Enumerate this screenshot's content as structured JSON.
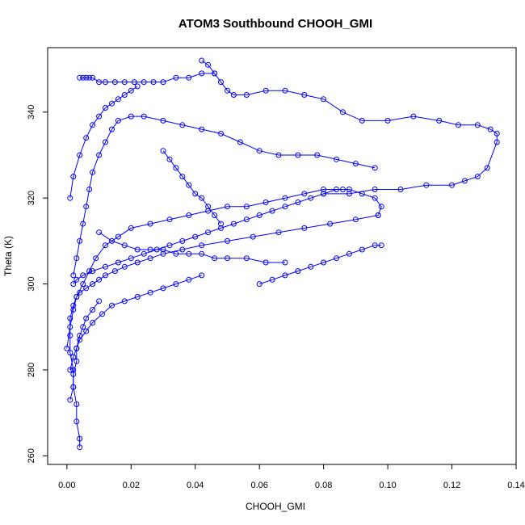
{
  "chart_data": {
    "type": "line",
    "title": "ATOM3 Southbound CHOOH_GMI",
    "xlabel": "CHOOH_GMI",
    "ylabel": "Theta (K)",
    "xlim": [
      -0.006,
      0.14
    ],
    "ylim": [
      258,
      355
    ],
    "x_ticks": [
      0.0,
      0.02,
      0.04,
      0.06,
      0.08,
      0.1,
      0.12,
      0.14
    ],
    "x_tick_labels": [
      "0.00",
      "0.02",
      "0.04",
      "0.06",
      "0.08",
      "0.10",
      "0.12",
      "0.14"
    ],
    "y_ticks": [
      260,
      280,
      300,
      320,
      340
    ],
    "y_tick_labels": [
      "260",
      "280",
      "300",
      "320",
      "340"
    ],
    "grid": false,
    "legend": "none",
    "series_color": "#0000ff",
    "marker": "open-circle",
    "series": [
      {
        "segments": [
          {
            "x": [
              0.004,
              0.004,
              0.003,
              0.003,
              0.002,
              0.002,
              0.001,
              0.001,
              0.001,
              0.002,
              0.003,
              0.004,
              0.006,
              0.008,
              0.01,
              0.012,
              0.015,
              0.018,
              0.022,
              0.026,
              0.03,
              0.036,
              0.042,
              0.05,
              0.058,
              0.066,
              0.074,
              0.082,
              0.09,
              0.097
            ],
            "y": [
              262,
              264,
              268,
              272,
              276,
              280,
              284,
              288,
              292,
              295,
              297,
              298,
              299,
              300,
              301,
              302,
              303,
              304,
              305,
              306,
              307,
              308,
              309,
              310,
              311,
              312,
              313,
              314,
              315,
              316
            ]
          },
          {
            "x": [
              0.097,
              0.098,
              0.096,
              0.092,
              0.088,
              0.084,
              0.08,
              0.076,
              0.072,
              0.068,
              0.064,
              0.06,
              0.056,
              0.052,
              0.048,
              0.044,
              0.04,
              0.036,
              0.032,
              0.028,
              0.024,
              0.02,
              0.016,
              0.012,
              0.008,
              0.005,
              0.003,
              0.002
            ],
            "y": [
              316,
              318,
              320,
              321,
              322,
              322,
              321,
              320,
              319,
              318,
              317,
              316,
              315,
              314,
              313,
              312,
              311,
              310,
              309,
              308,
              307,
              306,
              305,
              304,
              303,
              302,
              301,
              300
            ]
          },
          {
            "x": [
              0.002,
              0.003,
              0.004,
              0.005,
              0.006,
              0.007,
              0.008,
              0.01,
              0.012,
              0.014,
              0.016,
              0.02,
              0.024,
              0.03,
              0.036,
              0.042,
              0.048,
              0.054,
              0.06,
              0.066,
              0.072,
              0.078,
              0.084,
              0.09,
              0.096
            ],
            "y": [
              302,
              306,
              310,
              314,
              318,
              322,
              326,
              330,
              333,
              336,
              338,
              339,
              339,
              338,
              337,
              336,
              335,
              333,
              331,
              330,
              330,
              330,
              329,
              328,
              327
            ]
          },
          {
            "x": [
              0.042,
              0.044,
              0.046,
              0.048,
              0.05,
              0.052,
              0.056,
              0.062,
              0.068,
              0.074,
              0.08,
              0.086,
              0.092,
              0.1,
              0.108,
              0.116,
              0.122,
              0.128,
              0.132,
              0.134,
              0.134,
              0.131,
              0.128,
              0.124,
              0.12,
              0.112,
              0.104,
              0.096,
              0.088,
              0.08
            ],
            "y": [
              352,
              351,
              349,
              347,
              345,
              344,
              344,
              345,
              345,
              344,
              343,
              340,
              338,
              338,
              339,
              338,
              337,
              337,
              336,
              335,
              333,
              327,
              325,
              324,
              323,
              323,
              322,
              322,
              321,
              321
            ]
          },
          {
            "x": [
              0.004,
              0.005,
              0.006,
              0.007,
              0.008,
              0.01,
              0.012,
              0.015,
              0.018,
              0.021,
              0.024,
              0.027,
              0.03,
              0.034,
              0.038,
              0.042,
              0.046
            ],
            "y": [
              348,
              348,
              348,
              348,
              348,
              347,
              347,
              347,
              347,
              347,
              347,
              347,
              347,
              348,
              348,
              349,
              349
            ]
          },
          {
            "x": [
              0.001,
              0.002,
              0.003,
              0.004,
              0.006,
              0.008,
              0.011,
              0.014,
              0.018,
              0.022,
              0.026,
              0.03,
              0.034,
              0.038,
              0.042
            ],
            "y": [
              280,
              283,
              285,
              287,
              289,
              291,
              293,
              295,
              296,
              297,
              298,
              299,
              300,
              301,
              302
            ]
          },
          {
            "x": [
              0.0,
              0.001,
              0.002,
              0.003,
              0.005,
              0.007,
              0.009,
              0.012,
              0.016,
              0.02,
              0.026,
              0.032,
              0.038,
              0.044,
              0.05,
              0.056,
              0.062,
              0.068,
              0.074,
              0.08,
              0.086
            ],
            "y": [
              285,
              290,
              294,
              297,
              300,
              303,
              306,
              309,
              311,
              313,
              314,
              315,
              316,
              317,
              318,
              318,
              319,
              320,
              321,
              322,
              322
            ]
          },
          {
            "x": [
              0.001,
              0.002,
              0.004,
              0.006,
              0.008,
              0.01,
              0.012,
              0.014,
              0.016,
              0.018,
              0.02,
              0.022
            ],
            "y": [
              320,
              325,
              330,
              334,
              337,
              339,
              341,
              342,
              343,
              344,
              345,
              346
            ]
          },
          {
            "x": [
              0.03,
              0.032,
              0.034,
              0.036,
              0.038,
              0.04,
              0.042,
              0.044,
              0.046,
              0.048
            ],
            "y": [
              331,
              329,
              327,
              325,
              323,
              321,
              320,
              318,
              316,
              314
            ]
          },
          {
            "x": [
              0.001,
              0.002,
              0.002,
              0.003,
              0.003,
              0.004,
              0.005,
              0.006,
              0.008,
              0.01
            ],
            "y": [
              273,
              276,
              279,
              282,
              285,
              288,
              290,
              292,
              294,
              296
            ]
          },
          {
            "x": [
              0.06,
              0.064,
              0.068,
              0.072,
              0.076,
              0.08,
              0.084,
              0.088,
              0.092,
              0.096,
              0.098
            ],
            "y": [
              300,
              301,
              302,
              303,
              304,
              305,
              306,
              307,
              308,
              309,
              309
            ]
          },
          {
            "x": [
              0.01,
              0.014,
              0.018,
              0.022,
              0.026,
              0.03,
              0.034,
              0.038,
              0.042,
              0.046,
              0.05,
              0.056,
              0.062,
              0.068
            ],
            "y": [
              312,
              310,
              309,
              308,
              308,
              308,
              307,
              307,
              307,
              306,
              306,
              306,
              305,
              305
            ]
          }
        ]
      }
    ]
  }
}
